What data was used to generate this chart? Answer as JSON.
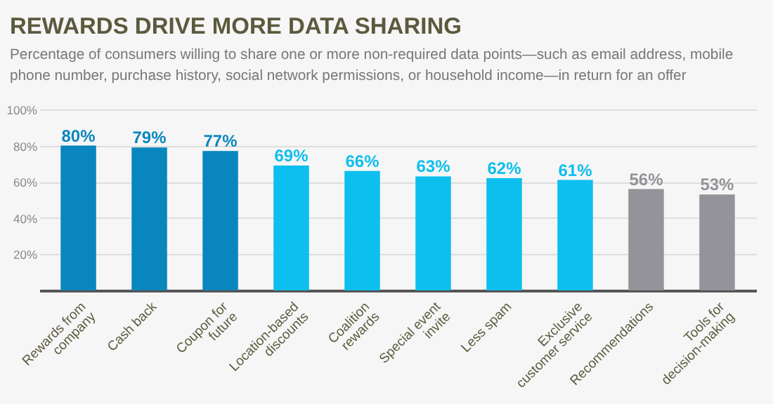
{
  "chart_data": {
    "type": "bar",
    "title": "REWARDS DRIVE MORE DATA SHARING",
    "subtitle": "Percentage of consumers willing to share one or more non-required data points—such as email address, mobile phone number, purchase history, social network permissions, or household income—in return for an offer",
    "categories": [
      "Rewards from company",
      "Cash back",
      "Coupon for future",
      "Location-based discounts",
      "Coalition rewards",
      "Special event invite",
      "Less spam",
      "Exclusive customer service",
      "Recommendations",
      "Tools for decision-making"
    ],
    "values": [
      80,
      79,
      77,
      69,
      66,
      63,
      62,
      61,
      56,
      53
    ],
    "colors": [
      "#0a86bf",
      "#0a86bf",
      "#0a86bf",
      "#0cbfee",
      "#0cbfee",
      "#0cbfee",
      "#0cbfee",
      "#0cbfee",
      "#939399",
      "#939399"
    ],
    "value_labels": [
      "80%",
      "79%",
      "77%",
      "69%",
      "66%",
      "63%",
      "62%",
      "61%",
      "56%",
      "53%"
    ],
    "ylim": [
      0,
      100
    ],
    "yticks": [
      {
        "value": 20,
        "label": "20%"
      },
      {
        "value": 40,
        "label": "40%"
      },
      {
        "value": 60,
        "label": "60%"
      },
      {
        "value": 80,
        "label": "80%"
      },
      {
        "value": 100,
        "label": "100%"
      }
    ],
    "grid": "y"
  }
}
